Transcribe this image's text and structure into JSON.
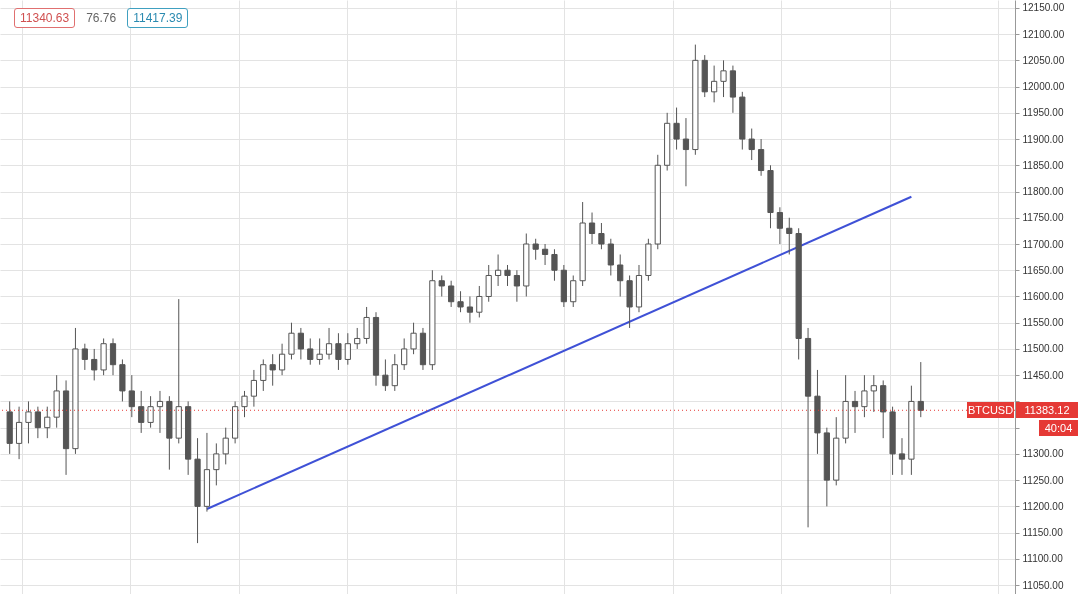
{
  "chart_data": {
    "type": "candlestick",
    "categories": [
      null,
      null,
      null,
      null,
      null,
      null,
      null,
      null,
      null,
      null,
      null,
      null,
      null,
      null,
      null,
      null,
      null,
      null,
      null,
      null,
      null,
      null,
      null,
      null,
      null,
      null,
      null,
      null,
      null,
      null,
      null,
      null,
      null,
      null,
      null,
      null,
      null,
      null,
      null,
      null,
      null,
      null,
      null,
      null,
      null,
      null,
      null,
      null,
      null,
      null,
      null,
      null,
      null,
      null,
      null,
      null,
      null,
      null,
      null,
      null,
      null,
      null,
      null,
      null,
      null,
      null,
      null,
      null,
      null,
      null,
      null,
      null,
      null,
      null,
      null,
      null,
      null,
      null,
      null,
      null,
      null,
      null,
      null,
      null,
      null,
      null,
      null,
      null,
      null,
      null,
      null,
      null,
      null,
      null,
      null,
      null,
      null,
      null,
      null,
      null,
      null,
      null,
      null,
      null,
      null,
      null,
      null
    ],
    "ohlc": [
      [
        11380,
        11400,
        11300,
        11320
      ],
      [
        11320,
        11390,
        11290,
        11360
      ],
      [
        11360,
        11400,
        11320,
        11380
      ],
      [
        11380,
        11390,
        11330,
        11350
      ],
      [
        11350,
        11390,
        11330,
        11370
      ],
      [
        11370,
        11450,
        11350,
        11420
      ],
      [
        11420,
        11440,
        11260,
        11310
      ],
      [
        11310,
        11540,
        11300,
        11500
      ],
      [
        11500,
        11510,
        11460,
        11480
      ],
      [
        11480,
        11500,
        11440,
        11460
      ],
      [
        11460,
        11520,
        11450,
        11510
      ],
      [
        11510,
        11520,
        11450,
        11470
      ],
      [
        11470,
        11480,
        11400,
        11420
      ],
      [
        11420,
        11450,
        11370,
        11390
      ],
      [
        11390,
        11420,
        11340,
        11360
      ],
      [
        11360,
        11410,
        11350,
        11390
      ],
      [
        11390,
        11420,
        11340,
        11400
      ],
      [
        11400,
        11410,
        11270,
        11330
      ],
      [
        11330,
        11595,
        11320,
        11390
      ],
      [
        11390,
        11400,
        11260,
        11290
      ],
      [
        11290,
        11330,
        11130,
        11200
      ],
      [
        11200,
        11340,
        11190,
        11270
      ],
      [
        11270,
        11320,
        11240,
        11300
      ],
      [
        11300,
        11350,
        11280,
        11330
      ],
      [
        11330,
        11400,
        11320,
        11390
      ],
      [
        11390,
        11420,
        11370,
        11410
      ],
      [
        11410,
        11460,
        11390,
        11440
      ],
      [
        11440,
        11480,
        11420,
        11470
      ],
      [
        11470,
        11490,
        11430,
        11460
      ],
      [
        11460,
        11510,
        11450,
        11490
      ],
      [
        11490,
        11550,
        11480,
        11530
      ],
      [
        11530,
        11540,
        11480,
        11500
      ],
      [
        11500,
        11520,
        11470,
        11480
      ],
      [
        11480,
        11520,
        11470,
        11490
      ],
      [
        11490,
        11540,
        11480,
        11510
      ],
      [
        11510,
        11530,
        11460,
        11480
      ],
      [
        11480,
        11530,
        11470,
        11510
      ],
      [
        11510,
        11540,
        11500,
        11520
      ],
      [
        11520,
        11580,
        11510,
        11560
      ],
      [
        11560,
        11570,
        11430,
        11450
      ],
      [
        11450,
        11480,
        11420,
        11430
      ],
      [
        11430,
        11490,
        11420,
        11470
      ],
      [
        11470,
        11520,
        11460,
        11500
      ],
      [
        11500,
        11550,
        11490,
        11530
      ],
      [
        11530,
        11540,
        11460,
        11470
      ],
      [
        11470,
        11650,
        11460,
        11630
      ],
      [
        11630,
        11640,
        11600,
        11620
      ],
      [
        11620,
        11630,
        11580,
        11590
      ],
      [
        11590,
        11610,
        11570,
        11580
      ],
      [
        11580,
        11600,
        11550,
        11570
      ],
      [
        11570,
        11620,
        11560,
        11600
      ],
      [
        11600,
        11660,
        11590,
        11640
      ],
      [
        11640,
        11680,
        11620,
        11650
      ],
      [
        11650,
        11660,
        11620,
        11640
      ],
      [
        11640,
        11650,
        11590,
        11620
      ],
      [
        11620,
        11720,
        11600,
        11700
      ],
      [
        11700,
        11710,
        11670,
        11690
      ],
      [
        11690,
        11700,
        11660,
        11680
      ],
      [
        11680,
        11690,
        11630,
        11650
      ],
      [
        11650,
        11660,
        11580,
        11590
      ],
      [
        11590,
        11640,
        11580,
        11630
      ],
      [
        11630,
        11780,
        11620,
        11740
      ],
      [
        11740,
        11760,
        11700,
        11720
      ],
      [
        11720,
        11740,
        11690,
        11700
      ],
      [
        11700,
        11710,
        11640,
        11660
      ],
      [
        11660,
        11680,
        11600,
        11630
      ],
      [
        11630,
        11640,
        11540,
        11580
      ],
      [
        11580,
        11660,
        11570,
        11640
      ],
      [
        11640,
        11710,
        11630,
        11700
      ],
      [
        11700,
        11870,
        11690,
        11850
      ],
      [
        11850,
        11950,
        11840,
        11930
      ],
      [
        11930,
        11960,
        11880,
        11900
      ],
      [
        11900,
        11940,
        11810,
        11880
      ],
      [
        11880,
        12080,
        11870,
        12050
      ],
      [
        12050,
        12060,
        11980,
        11990
      ],
      [
        11990,
        12040,
        11970,
        12010
      ],
      [
        12010,
        12050,
        11980,
        12030
      ],
      [
        12030,
        12040,
        11950,
        11980
      ],
      [
        11980,
        11990,
        11880,
        11900
      ],
      [
        11900,
        11920,
        11860,
        11880
      ],
      [
        11880,
        11900,
        11830,
        11840
      ],
      [
        11840,
        11850,
        11730,
        11760
      ],
      [
        11760,
        11770,
        11700,
        11730
      ],
      [
        11730,
        11750,
        11680,
        11720
      ],
      [
        11720,
        11730,
        11480,
        11520
      ],
      [
        11520,
        11540,
        11160,
        11410
      ],
      [
        11410,
        11460,
        11300,
        11340
      ],
      [
        11340,
        11350,
        11200,
        11250
      ],
      [
        11250,
        11370,
        11240,
        11330
      ],
      [
        11330,
        11450,
        11320,
        11400
      ],
      [
        11400,
        11420,
        11340,
        11390
      ],
      [
        11390,
        11450,
        11370,
        11420
      ],
      [
        11420,
        11450,
        11380,
        11430
      ],
      [
        11430,
        11440,
        11330,
        11380
      ],
      [
        11380,
        11390,
        11260,
        11300
      ],
      [
        11300,
        11330,
        11260,
        11290
      ],
      [
        11290,
        11430,
        11260,
        11400
      ],
      [
        11400,
        11475,
        11370,
        11383
      ],
      null,
      null,
      null,
      null,
      null,
      null,
      null,
      null,
      null
    ],
    "color": "#555555",
    "series": [
      {
        "type": "line",
        "values": [
          null,
          null,
          null,
          null,
          null,
          null,
          null,
          null,
          null,
          null,
          null,
          null,
          null,
          null,
          null,
          null,
          null,
          null,
          null,
          null,
          null,
          11195,
          null,
          null,
          null,
          null,
          null,
          null,
          null,
          null,
          null,
          null,
          null,
          null,
          null,
          null,
          null,
          null,
          null,
          null,
          null,
          null,
          null,
          null,
          null,
          null,
          null,
          null,
          null,
          null,
          null,
          null,
          null,
          null,
          null,
          null,
          null,
          null,
          null,
          null,
          null,
          null,
          null,
          null,
          null,
          null,
          null,
          null,
          null,
          null,
          null,
          null,
          null,
          null,
          null,
          null,
          null,
          null,
          null,
          null,
          null,
          null,
          null,
          null,
          null,
          null,
          null,
          null,
          null,
          null,
          null,
          null,
          null,
          null,
          null,
          null,
          11790,
          null,
          null,
          null,
          null,
          null,
          null,
          null,
          null,
          null,
          null
        ],
        "color": "#3f51d6"
      }
    ],
    "ylim": [
      11033,
      12165
    ],
    "yticks": [
      {
        "value": 11050,
        "label": "11050.00"
      },
      {
        "value": 11100,
        "label": "11100.00"
      },
      {
        "value": 11150,
        "label": "11150.00"
      },
      {
        "value": 11200,
        "label": "11200.00"
      },
      {
        "value": 11250,
        "label": "11250.00"
      },
      {
        "value": 11300,
        "label": "11300.00"
      },
      {
        "value": 11350,
        "label": null
      },
      {
        "value": 11400,
        "label": null
      },
      {
        "value": 11450,
        "label": "11450.00"
      },
      {
        "value": 11500,
        "label": "11500.00"
      },
      {
        "value": 11550,
        "label": "11550.00"
      },
      {
        "value": 11600,
        "label": "11600.00"
      },
      {
        "value": 11650,
        "label": "11650.00"
      },
      {
        "value": 11700,
        "label": "11700.00"
      },
      {
        "value": 11750,
        "label": "11750.00"
      },
      {
        "value": 11800,
        "label": "11800.00"
      },
      {
        "value": 11850,
        "label": "11850.00"
      },
      {
        "value": 11900,
        "label": "11900.00"
      },
      {
        "value": 11950,
        "label": "11950.00"
      },
      {
        "value": 12000,
        "label": "12000.00"
      },
      {
        "value": 12050,
        "label": "12050.00"
      },
      {
        "value": 12100,
        "label": "12100.00"
      },
      {
        "value": 12150,
        "label": "12150.00"
      }
    ],
    "tick_labels": "y",
    "grid": true,
    "ref_lines": [
      {
        "axis": "y",
        "value": 11383.12,
        "label": "BTCUSD",
        "color": "#e53935",
        "line_style": "dotted"
      }
    ],
    "annotations": [
      "11340.63",
      "76.76",
      "11417.39",
      "11383.12",
      "40:04"
    ]
  }
}
